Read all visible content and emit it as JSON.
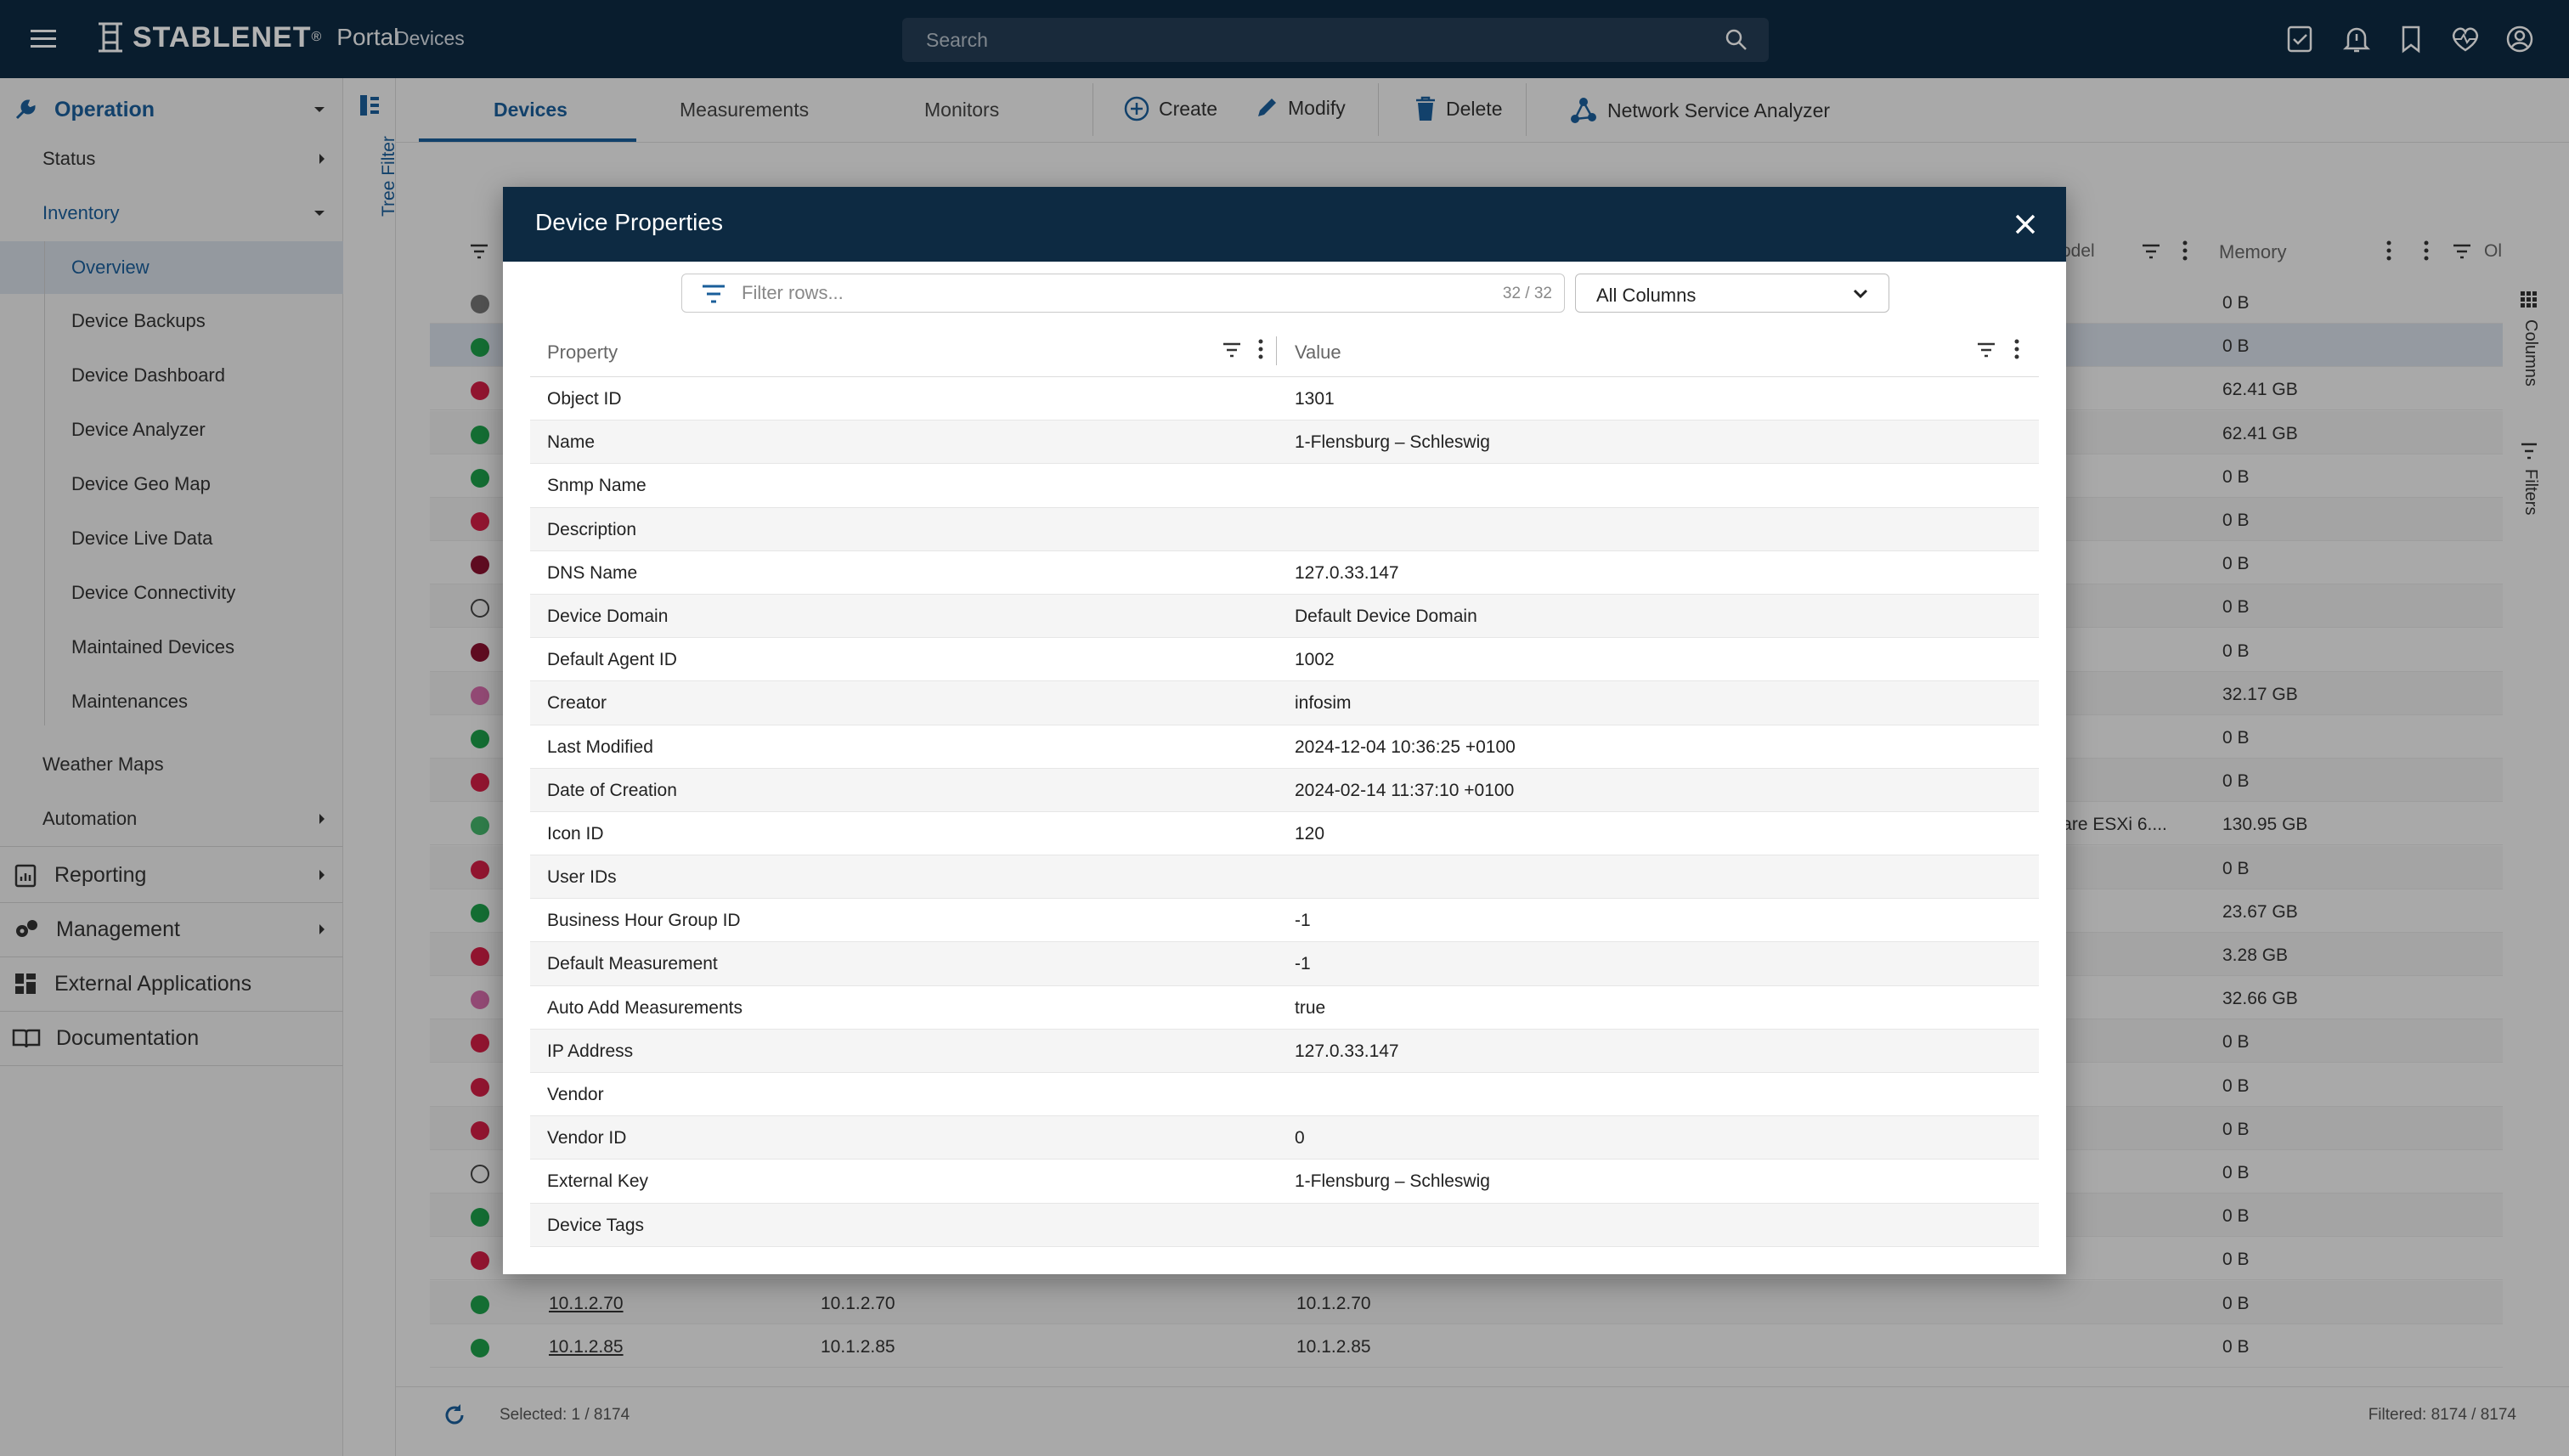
{
  "topbar": {
    "brand": "STABLENET",
    "brand_mark": "®",
    "portal": "Portal",
    "breadcrumb": "Devices",
    "search_placeholder": "Search"
  },
  "sidebar": {
    "operation": "Operation",
    "status": "Status",
    "inventory": "Inventory",
    "inventory_items": [
      "Overview",
      "Device Backups",
      "Device Dashboard",
      "Device Analyzer",
      "Device Geo Map",
      "Device Live Data",
      "Device Connectivity",
      "Maintained Devices",
      "Maintenances"
    ],
    "weather_maps": "Weather Maps",
    "automation": "Automation",
    "reporting": "Reporting",
    "management": "Management",
    "external_applications": "External Applications",
    "documentation": "Documentation",
    "tree_filter": "Tree Filter"
  },
  "toolbar": {
    "tabs": [
      "Devices",
      "Measurements",
      "Monitors"
    ],
    "create": "Create",
    "modify": "Modify",
    "delete": "Delete",
    "nsa": "Network Service Analyzer"
  },
  "grid": {
    "header_model": "odel",
    "header_memory": "Memory",
    "header_other": "Ol",
    "rows": [
      {
        "status": "#757575",
        "memory": "0 B"
      },
      {
        "status": "#1e9e4a",
        "memory": "0 B"
      },
      {
        "status": "#d21f45",
        "memory": "62.41 GB"
      },
      {
        "status": "#1e9e4a",
        "memory": "62.41 GB"
      },
      {
        "status": "#1e9e4a",
        "memory": "0 B"
      },
      {
        "status": "#d21f45",
        "memory": "0 B"
      },
      {
        "status": "#8a1230",
        "memory": "0 B"
      },
      {
        "status": "outline",
        "memory": "0 B"
      },
      {
        "status": "#8a1230",
        "memory": "0 B"
      },
      {
        "status": "#d36aa8",
        "memory": "32.17 GB"
      },
      {
        "status": "#1e9e4a",
        "memory": "0 B"
      },
      {
        "status": "#d21f45",
        "memory": "0 B"
      },
      {
        "status": "#44b36a",
        "memory": "130.95 GB",
        "model": "ware ESXi 6...."
      },
      {
        "status": "#d21f45",
        "memory": "0 B"
      },
      {
        "status": "#1e9e4a",
        "memory": "23.67 GB"
      },
      {
        "status": "#d21f45",
        "memory": "3.28 GB"
      },
      {
        "status": "#d36aa8",
        "memory": "32.66 GB"
      },
      {
        "status": "#d21f45",
        "memory": "0 B"
      },
      {
        "status": "#d21f45",
        "memory": "0 B"
      },
      {
        "status": "#d21f45",
        "memory": "0 B"
      },
      {
        "status": "outline",
        "memory": "0 B"
      },
      {
        "status": "#1e9e4a",
        "memory": "0 B"
      },
      {
        "status": "#d21f45",
        "memory": "0 B"
      },
      {
        "status": "#1e9e4a",
        "memory": "0 B",
        "name": "10.1.2.70",
        "dns": "10.1.2.70",
        "ip": "10.1.2.70"
      },
      {
        "status": "#1e9e4a",
        "memory": "0 B",
        "name": "10.1.2.85",
        "dns": "10.1.2.85",
        "ip": "10.1.2.85"
      }
    ],
    "right_columns": "Columns",
    "right_filters": "Filters"
  },
  "footer": {
    "selected": "Selected: 1 / 8174",
    "filtered": "Filtered: 8174 / 8174"
  },
  "dialog": {
    "title": "Device Properties",
    "filter_placeholder": "Filter rows...",
    "filter_count": "32 / 32",
    "column_select": "All Columns",
    "col_property": "Property",
    "col_value": "Value",
    "rows": [
      {
        "k": "Object ID",
        "v": "1301"
      },
      {
        "k": "Name",
        "v": "1-Flensburg – Schleswig"
      },
      {
        "k": "Snmp Name",
        "v": ""
      },
      {
        "k": "Description",
        "v": ""
      },
      {
        "k": "DNS Name",
        "v": "127.0.33.147"
      },
      {
        "k": "Device Domain",
        "v": "Default Device Domain"
      },
      {
        "k": "Default Agent ID",
        "v": "1002"
      },
      {
        "k": "Creator",
        "v": "infosim"
      },
      {
        "k": "Last Modified",
        "v": "2024-12-04 10:36:25 +0100"
      },
      {
        "k": "Date of Creation",
        "v": "2024-02-14 11:37:10 +0100"
      },
      {
        "k": "Icon ID",
        "v": "120"
      },
      {
        "k": "User IDs",
        "v": ""
      },
      {
        "k": "Business Hour Group ID",
        "v": "-1"
      },
      {
        "k": "Default Measurement",
        "v": "-1"
      },
      {
        "k": "Auto Add Measurements",
        "v": "true"
      },
      {
        "k": "IP Address",
        "v": "127.0.33.147"
      },
      {
        "k": "Vendor",
        "v": ""
      },
      {
        "k": "Vendor ID",
        "v": "0"
      },
      {
        "k": "External Key",
        "v": "1-Flensburg – Schleswig"
      },
      {
        "k": "Device Tags",
        "v": ""
      }
    ]
  }
}
